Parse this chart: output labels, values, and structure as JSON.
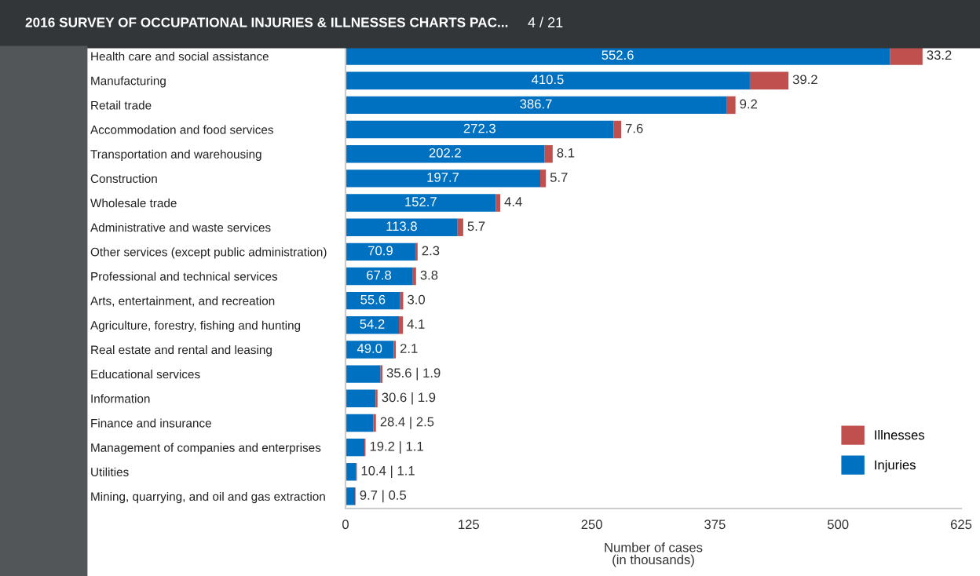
{
  "chart_data": {
    "type": "bar",
    "orientation": "horizontal",
    "stacked": true,
    "title": "2016 SURVEY OF OCCUPATIONAL INJURIES & ILLNESSES CHARTS PAC...",
    "annotations": [
      "4 / 21"
    ],
    "xlabel": "Number of cases\n(in thousands)",
    "categories": [
      "Health care and social assistance",
      "Manufacturing",
      "Retail trade",
      "Accommodation and food services",
      "Transportation and warehousing",
      "Construction",
      "Wholesale trade",
      "Administrative and waste services",
      "Other services (except public administration)",
      "Professional and technical services",
      "Arts, entertainment, and recreation",
      "Agriculture, forestry, fishing and hunting",
      "Real estate and rental and leasing",
      "Educational services",
      "Information",
      "Finance and insurance",
      "Management of companies and enterprises",
      "Utilities",
      "Mining, quarrying, and oil and gas extraction"
    ],
    "series": [
      {
        "name": "Injuries",
        "color": "#0070c0",
        "values": [
          552.6,
          410.5,
          386.7,
          272.3,
          202.2,
          197.7,
          152.7,
          113.8,
          70.9,
          67.8,
          55.6,
          54.2,
          49.0,
          35.6,
          30.6,
          28.4,
          19.2,
          10.4,
          9.7
        ],
        "value_labels": [
          "552.6",
          "410.5",
          "386.7",
          "272.3",
          "202.2",
          "197.7",
          "152.7",
          "113.8",
          "70.9",
          "67.8",
          "55.6",
          "54.2",
          "49.0",
          null,
          null,
          null,
          null,
          null,
          null
        ]
      },
      {
        "name": "Illnesses",
        "color": "#c0504d",
        "values": [
          33.2,
          39.2,
          9.2,
          7.6,
          8.1,
          5.7,
          4.4,
          5.7,
          2.3,
          3.8,
          3.0,
          4.1,
          2.1,
          1.9,
          1.9,
          2.5,
          1.1,
          1.1,
          0.5
        ],
        "value_labels": [
          "33.2",
          "39.2",
          "9.2",
          "7.6",
          "8.1",
          "5.7",
          "4.4",
          "5.7",
          "2.3",
          "3.8",
          "3.0",
          "4.1",
          "2.1",
          "35.6 | 1.9",
          "30.6 | 1.9",
          "28.4 | 2.5",
          "19.2 | 1.1",
          "10.4 | 1.1",
          "9.7 | 0.5"
        ]
      }
    ],
    "xlim": [
      0,
      625
    ],
    "xticks": [
      0,
      125,
      250,
      375,
      500,
      625
    ],
    "grid": false,
    "legend": "bottom right"
  }
}
